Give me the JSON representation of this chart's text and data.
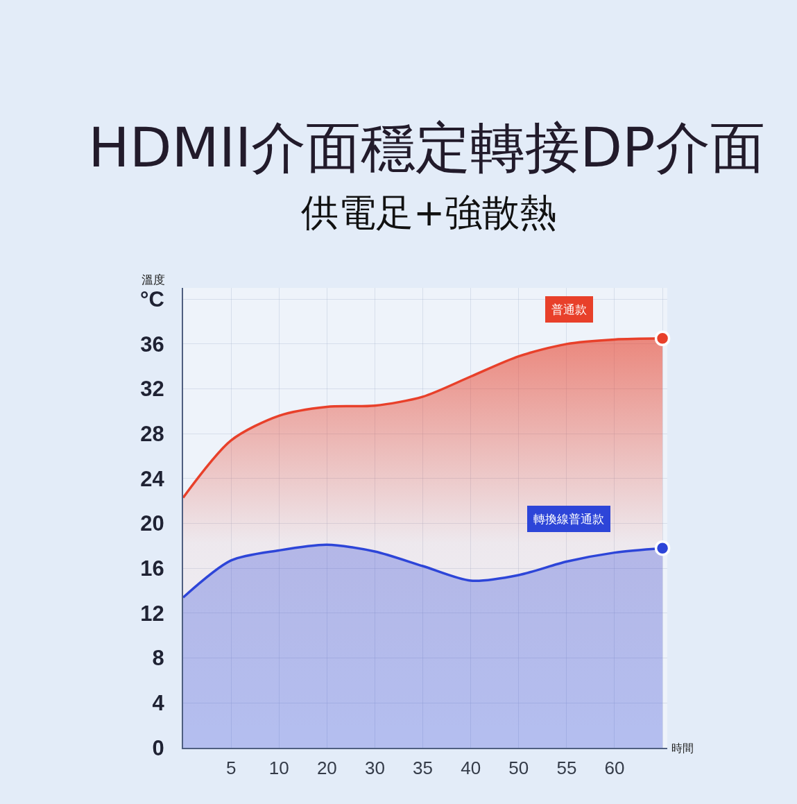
{
  "chart_data": {
    "type": "area",
    "title": "HDMII介面穩定轉接DP介面",
    "subtitle": "供電足+強散熱",
    "ylabel": "溫度",
    "xlabel": "時間",
    "categories": [
      null,
      "5",
      "10",
      "20",
      "30",
      "35",
      "40",
      "50",
      "55",
      "60",
      null
    ],
    "series": [
      {
        "name": "普通款",
        "color": "#e8402a",
        "values": [
          22.3,
          27.4,
          29.6,
          30.4,
          30.5,
          31.3,
          33.1,
          34.9,
          36.0,
          36.4,
          36.5
        ]
      },
      {
        "name": "轉換線普通款",
        "color": "#2d45d8",
        "values": [
          13.4,
          16.7,
          17.6,
          18.1,
          17.5,
          16.2,
          14.9,
          15.4,
          16.6,
          17.4,
          17.8
        ]
      }
    ],
    "ylim": [
      0,
      41
    ],
    "yticks": [
      0,
      4,
      8,
      12,
      16,
      20,
      24,
      28,
      32,
      36,
      {
        "value": 40,
        "label": "°C"
      }
    ],
    "grid": true,
    "line_style": "solid"
  }
}
